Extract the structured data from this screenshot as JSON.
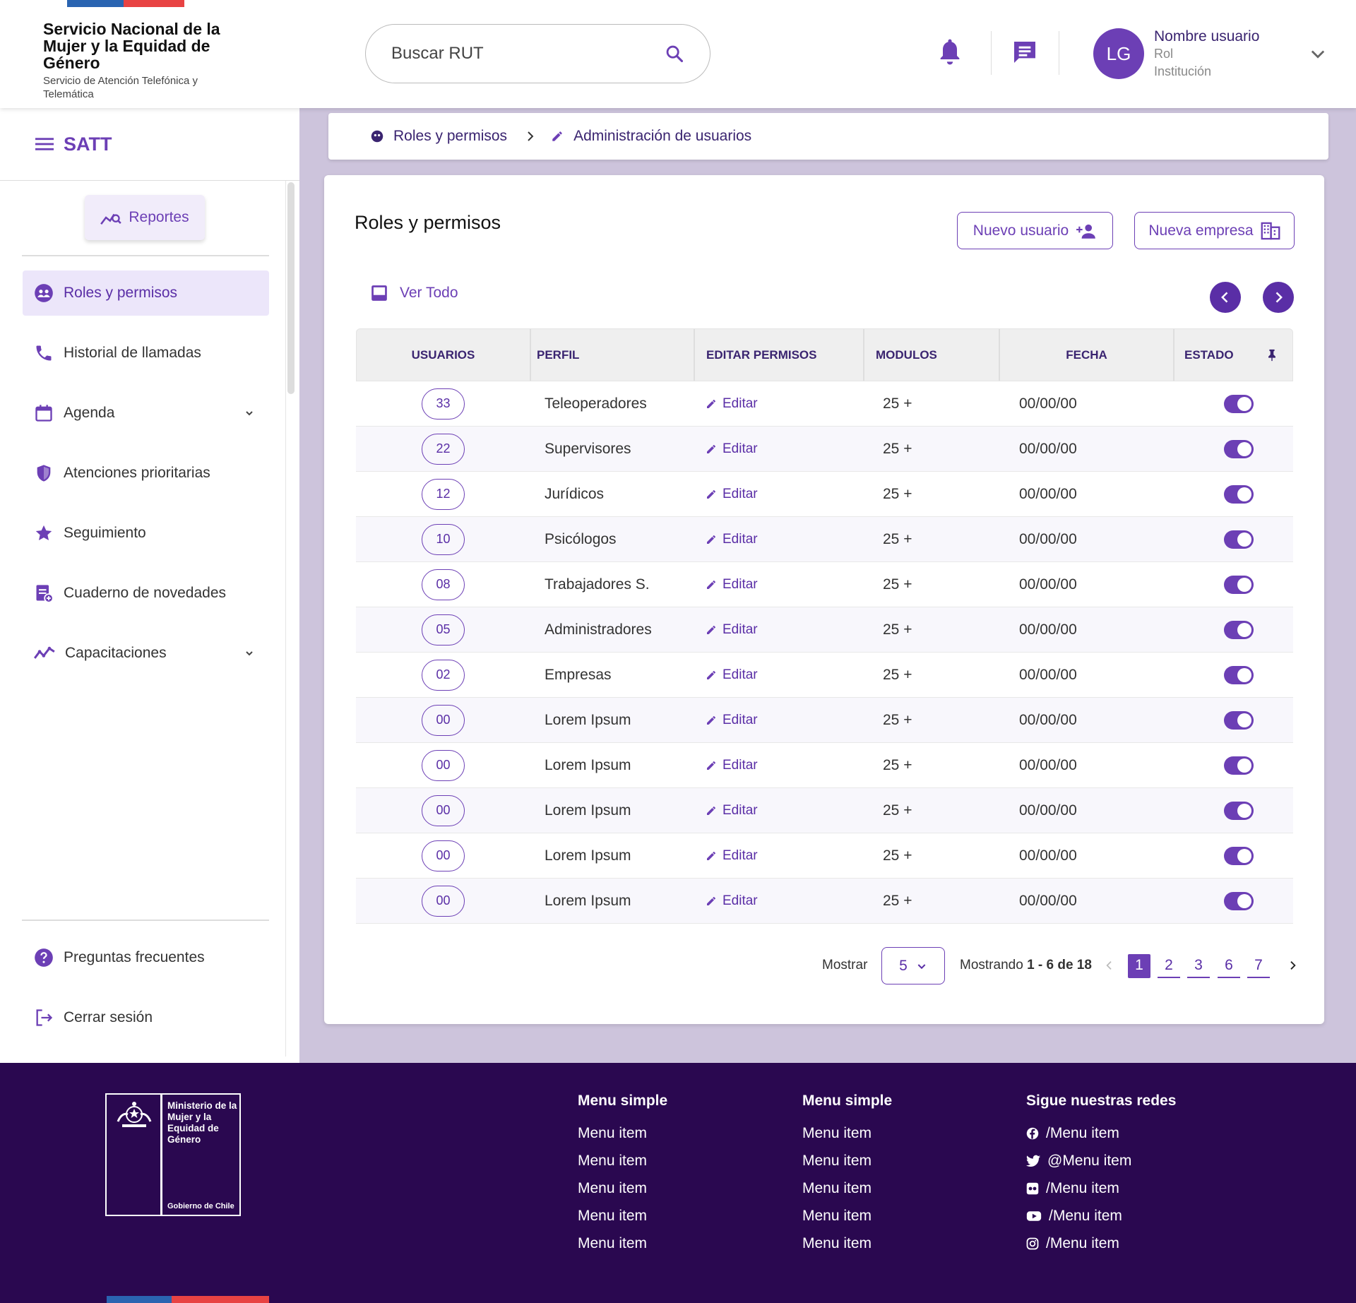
{
  "header": {
    "org_title": "Servicio Nacional de la Mujer y la Equidad de Género",
    "org_subtitle": "Servicio de Atención Telefónica y Telemática",
    "search_placeholder": "Buscar RUT",
    "avatar_initials": "LG",
    "user_name": "Nombre usuario",
    "user_role": "Rol",
    "user_institution": "Institución"
  },
  "sidebar": {
    "app_name": "SATT",
    "reports_label": "Reportes",
    "items": [
      {
        "label": "Roles y permisos",
        "icon": "supervised-user-icon"
      },
      {
        "label": "Historial de llamadas",
        "icon": "phone-icon"
      },
      {
        "label": "Agenda",
        "icon": "calendar-icon"
      },
      {
        "label": "Atenciones prioritarias",
        "icon": "shield-icon"
      },
      {
        "label": "Seguimiento",
        "icon": "star-icon"
      },
      {
        "label": "Cuaderno de novedades",
        "icon": "note-add-icon"
      },
      {
        "label": "Capacitaciones",
        "icon": "trending-icon"
      }
    ],
    "faq_label": "Preguntas frecuentes",
    "logout_label": "Cerrar sesión"
  },
  "breadcrumb": {
    "root": "Roles y permisos",
    "current": "Administración de usuarios"
  },
  "main": {
    "title": "Roles y permisos",
    "new_user_label": "Nuevo usuario",
    "new_company_label": "Nueva empresa",
    "view_all_label": "Ver Todo",
    "columns": [
      "USUARIOS",
      "PERFIL",
      "EDITAR PERMISOS",
      "MODULOS",
      "FECHA",
      "ESTADO"
    ],
    "edit_label": "Editar",
    "rows": [
      {
        "users": "33",
        "profile": "Teleoperadores",
        "modules": "25 +",
        "date": "00/00/00",
        "active": true
      },
      {
        "users": "22",
        "profile": "Supervisores",
        "modules": "25 +",
        "date": "00/00/00",
        "active": true
      },
      {
        "users": "12",
        "profile": "Jurídicos",
        "modules": "25 +",
        "date": "00/00/00",
        "active": true
      },
      {
        "users": "10",
        "profile": "Psicólogos",
        "modules": "25 +",
        "date": "00/00/00",
        "active": true
      },
      {
        "users": "08",
        "profile": "Trabajadores S.",
        "modules": "25 +",
        "date": "00/00/00",
        "active": true
      },
      {
        "users": "05",
        "profile": "Administradores",
        "modules": "25 +",
        "date": "00/00/00",
        "active": true
      },
      {
        "users": "02",
        "profile": "Empresas",
        "modules": "25 +",
        "date": "00/00/00",
        "active": true
      },
      {
        "users": "00",
        "profile": "Lorem Ipsum",
        "modules": "25 +",
        "date": "00/00/00",
        "active": true
      },
      {
        "users": "00",
        "profile": "Lorem Ipsum",
        "modules": "25 +",
        "date": "00/00/00",
        "active": true
      },
      {
        "users": "00",
        "profile": "Lorem Ipsum",
        "modules": "25 +",
        "date": "00/00/00",
        "active": true
      },
      {
        "users": "00",
        "profile": "Lorem Ipsum",
        "modules": "25 +",
        "date": "00/00/00",
        "active": true
      },
      {
        "users": "00",
        "profile": "Lorem Ipsum",
        "modules": "25 +",
        "date": "00/00/00",
        "active": true
      }
    ],
    "pagination": {
      "show_label": "Mostrar",
      "page_size": "5",
      "showing_prefix": "Mostrando",
      "showing_range": "1 - 6 de 18",
      "pages": [
        "1",
        "2",
        "3",
        "6",
        "7"
      ],
      "current_page": "1"
    }
  },
  "footer": {
    "ministry_name": "Ministerio de la Mujer y la Equidad de Género",
    "gov_label": "Gobierno de Chile",
    "menu1_title": "Menu simple",
    "menu1_items": [
      "Menu item",
      "Menu item",
      "Menu item",
      "Menu item",
      "Menu item"
    ],
    "menu2_title": "Menu simple",
    "menu2_items": [
      "Menu item",
      "Menu item",
      "Menu item",
      "Menu item",
      "Menu item"
    ],
    "social_title": "Sigue nuestras redes",
    "social_items": [
      {
        "label": "/Menu item",
        "icon": "facebook-icon"
      },
      {
        "label": "@Menu item",
        "icon": "twitter-icon"
      },
      {
        "label": "/Menu item",
        "icon": "flickr-icon"
      },
      {
        "label": "/Menu item",
        "icon": "youtube-icon"
      },
      {
        "label": "/Menu item",
        "icon": "instagram-icon"
      }
    ]
  },
  "colors": {
    "primary": "#6c3fb5",
    "primary_dark": "#5a2ea6",
    "footer_bg": "#2a0850",
    "page_bg": "#cdc4dc",
    "flag_blue": "#2a64b1",
    "flag_red": "#e84343"
  }
}
